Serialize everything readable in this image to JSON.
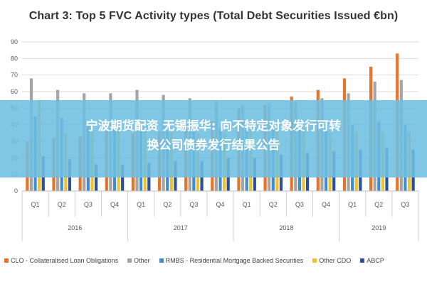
{
  "banner": {
    "line1": "宁波期货配资 无锡振华: 向不特定对象发行可转",
    "line2": "换公司债券发行结果公告"
  },
  "chart_data": {
    "type": "bar",
    "title": "Chart 3: Top 5 FVC Activity types (Total Debt Securities Issued €bn)",
    "ylim": [
      0,
      90
    ],
    "yticks": [
      "0",
      "10",
      "20",
      "30",
      "40",
      "50",
      "60",
      "70",
      "80",
      "90"
    ],
    "grid": true,
    "legend_position": "bottom",
    "quarters": [
      "Q1",
      "Q2",
      "Q3",
      "Q4",
      "Q1",
      "Q2",
      "Q3",
      "Q4",
      "Q1",
      "Q2",
      "Q3",
      "Q4",
      "Q1",
      "Q2",
      "Q3"
    ],
    "years": [
      {
        "label": "2016",
        "span": 4
      },
      {
        "label": "2017",
        "span": 4
      },
      {
        "label": "2018",
        "span": 4
      },
      {
        "label": "2019",
        "span": 3
      }
    ],
    "series": [
      {
        "name": "CLO - Collateralised Loan Obligations",
        "color": "#e8732a",
        "values": [
          30,
          32,
          33,
          36,
          35,
          36,
          40,
          42,
          50,
          52,
          57,
          61,
          68,
          75,
          83
        ]
      },
      {
        "name": "Other",
        "color": "#a5a5a5",
        "values": [
          68,
          61,
          59,
          59,
          61,
          58,
          56,
          54,
          52,
          53,
          54,
          56,
          59,
          66,
          67
        ]
      },
      {
        "name": "RMBS - Residential Mortgage Backed Securities",
        "color": "#3d8ecf",
        "values": [
          45,
          44,
          40,
          38,
          38,
          36,
          36,
          38,
          38,
          37,
          38,
          38,
          40,
          42,
          40
        ]
      },
      {
        "name": "Other CDO",
        "color": "#f2c130",
        "values": [
          55,
          35,
          36,
          38,
          36,
          36,
          35,
          35,
          37,
          38,
          38,
          35,
          36,
          36,
          36
        ]
      },
      {
        "name": "ABCP",
        "color": "#2c4f9e",
        "values": [
          21,
          19,
          16,
          16,
          17,
          18,
          18,
          20,
          20,
          22,
          23,
          24,
          25,
          26,
          25
        ]
      }
    ]
  }
}
